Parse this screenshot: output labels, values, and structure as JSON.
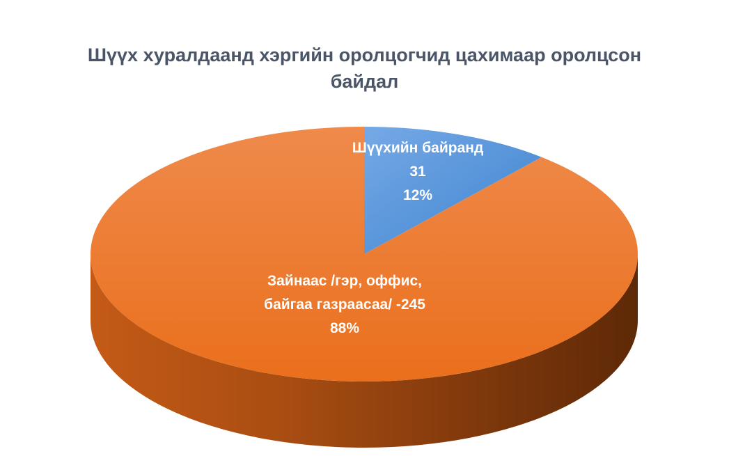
{
  "chart_data": {
    "type": "pie",
    "style": "3d",
    "title_lines": [
      "Шүүх хуралдаанд хэргийн оролцогчид цахимаар оролцсон",
      "байдал"
    ],
    "slices": [
      {
        "label": "Шүүхийн байранд",
        "value": 31,
        "value_text": "31",
        "percent_text": "12%",
        "color": "#4a8fd6"
      },
      {
        "label_lines": [
          "Зайнаас /гэр, оффис,",
          "байгаа газраасаа/ -245"
        ],
        "value": 245,
        "percent_text": "88%",
        "color": "#ed7d31"
      }
    ]
  }
}
